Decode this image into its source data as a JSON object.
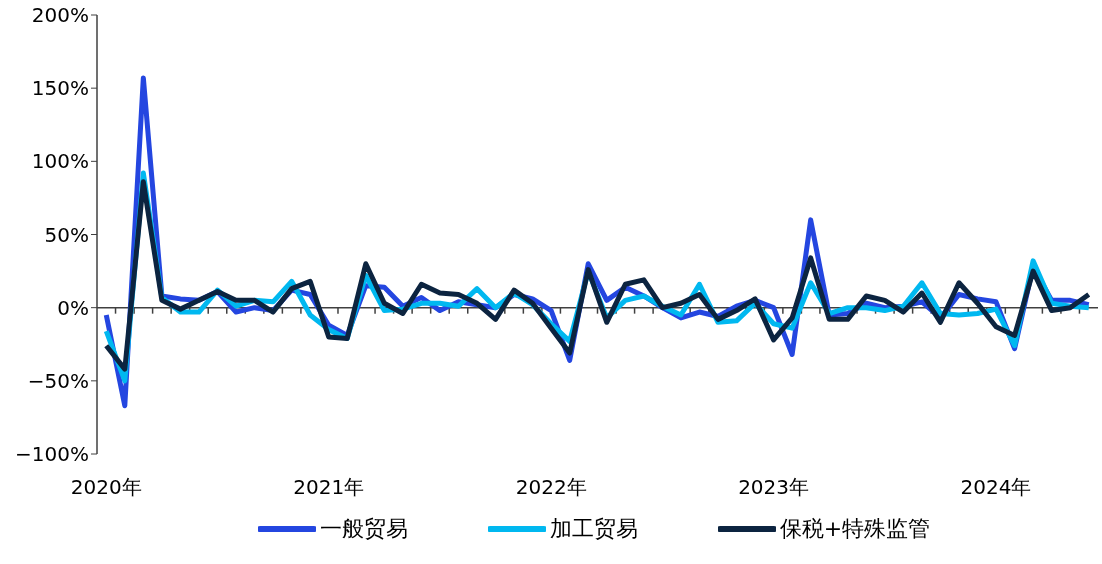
{
  "chart_data": {
    "type": "line",
    "categories": [
      "2020年",
      null,
      null,
      null,
      null,
      null,
      null,
      null,
      null,
      null,
      null,
      null,
      "2021年",
      null,
      null,
      null,
      null,
      null,
      null,
      null,
      null,
      null,
      null,
      null,
      "2022年",
      null,
      null,
      null,
      null,
      null,
      null,
      null,
      null,
      null,
      null,
      null,
      "2023年",
      null,
      null,
      null,
      null,
      null,
      null,
      null,
      null,
      null,
      null,
      null,
      "2024年",
      null,
      null,
      null,
      null,
      null
    ],
    "series": [
      {
        "name": "一般贸易",
        "color": "#2446e0",
        "values": [
          -5,
          -67,
          157,
          8,
          6,
          5,
          11,
          -3,
          0,
          -2,
          12,
          9,
          -12,
          -19,
          15,
          14,
          1,
          7,
          -2,
          4,
          2,
          0,
          9,
          6,
          -2,
          -36,
          30,
          5,
          14,
          8,
          0,
          -7,
          -3,
          -6,
          1,
          5,
          0,
          -32,
          60,
          -5,
          -4,
          3,
          0,
          1,
          4,
          -7,
          9,
          6,
          4,
          -28,
          28,
          5,
          5,
          2
        ]
      },
      {
        "name": "加工贸易",
        "color": "#00b8f0",
        "values": [
          -16,
          -50,
          92,
          7,
          -3,
          -3,
          12,
          1,
          5,
          4,
          18,
          -5,
          -15,
          -21,
          22,
          -2,
          -1,
          3,
          3,
          1,
          13,
          0,
          10,
          2,
          -11,
          -23,
          25,
          -7,
          5,
          8,
          1,
          -5,
          16,
          -10,
          -9,
          3,
          -11,
          -14,
          17,
          -4,
          0,
          0,
          -2,
          1,
          17,
          -4,
          -5,
          -4,
          -1,
          -26,
          32,
          3,
          1,
          0
        ]
      },
      {
        "name": "保税+特殊监管",
        "color": "#0c2440",
        "values": [
          -26,
          -42,
          86,
          5,
          -1,
          5,
          11,
          5,
          5,
          -3,
          13,
          18,
          -20,
          -21,
          30,
          3,
          -4,
          16,
          10,
          9,
          3,
          -8,
          12,
          3,
          -14,
          -31,
          26,
          -10,
          16,
          19,
          0,
          3,
          9,
          -8,
          -2,
          6,
          -22,
          -7,
          34,
          -8,
          -8,
          8,
          5,
          -3,
          10,
          -10,
          17,
          3,
          -13,
          -19,
          25,
          -2,
          0,
          9
        ]
      }
    ],
    "ylim": [
      -100,
      200
    ],
    "yticks": [
      {
        "value": -100,
        "label": "−100%"
      },
      {
        "value": -50,
        "label": "−50%"
      },
      {
        "value": 0,
        "label": "0%"
      },
      {
        "value": 50,
        "label": "50%"
      },
      {
        "value": 100,
        "label": "100%"
      },
      {
        "value": 150,
        "label": "150%"
      },
      {
        "value": 200,
        "label": "200%"
      }
    ],
    "legend": "bottom",
    "marker": "none",
    "line_style": "solid"
  }
}
